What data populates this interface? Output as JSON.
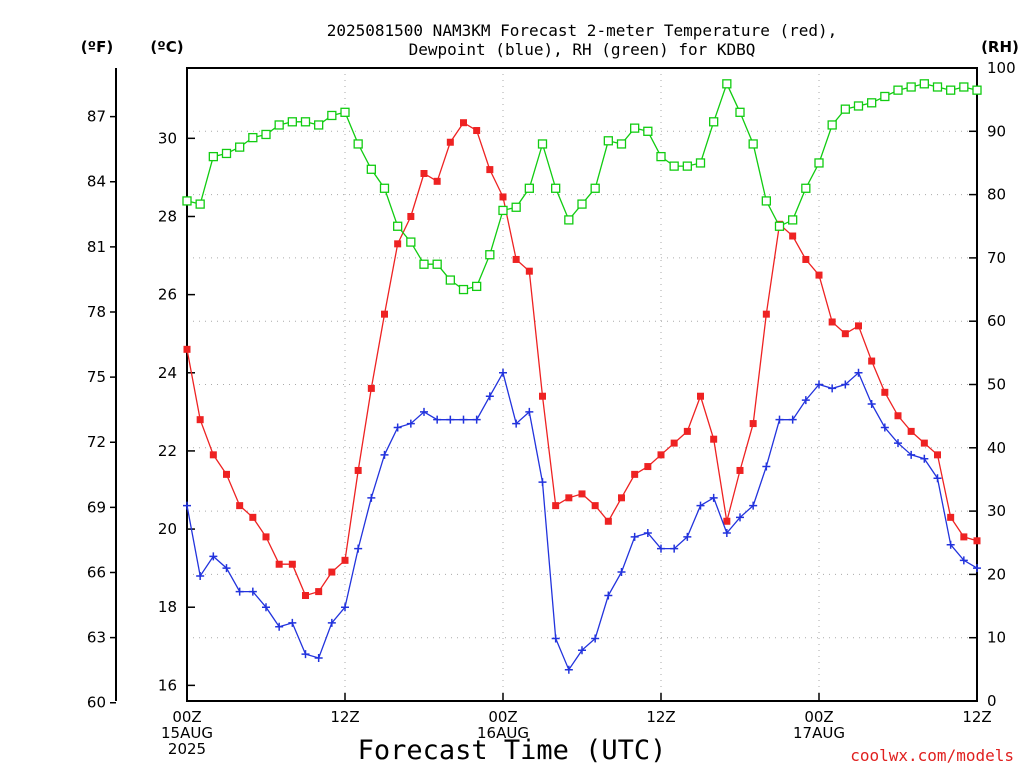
{
  "chart_data": {
    "type": "line",
    "title_line1": "2025081500 NAM3KM Forecast 2-meter Temperature (red),",
    "title_line2": "Dewpoint (blue), RH (green) for KDBQ",
    "xlabel": "Forecast Time (UTC)",
    "credit": "coolwx.com/models",
    "units": {
      "f": "(ºF)",
      "c": "(ºC)",
      "rh": "(RH)"
    },
    "xlim": [
      0,
      60
    ],
    "x_ticks": [
      {
        "x": 0,
        "lines": [
          "00Z",
          "15AUG",
          "2025"
        ]
      },
      {
        "x": 12,
        "lines": [
          "12Z"
        ]
      },
      {
        "x": 24,
        "lines": [
          "00Z",
          "16AUG"
        ]
      },
      {
        "x": 36,
        "lines": [
          "12Z"
        ]
      },
      {
        "x": 48,
        "lines": [
          "00Z",
          "17AUG"
        ]
      },
      {
        "x": 60,
        "lines": [
          "12Z"
        ]
      }
    ],
    "celsius_axis": {
      "range": [
        15.6,
        31.8
      ],
      "ticks": [
        16,
        18,
        20,
        22,
        24,
        26,
        28,
        30
      ]
    },
    "fahrenheit_axis": {
      "ticks": [
        60,
        63,
        66,
        69,
        72,
        75,
        78,
        81,
        84,
        87
      ]
    },
    "rh_axis": {
      "range": [
        0,
        100
      ],
      "ticks": [
        0,
        10,
        20,
        30,
        40,
        50,
        60,
        70,
        80,
        90,
        100
      ]
    },
    "colors": {
      "temperature": "#ee2222",
      "dewpoint": "#2233dd",
      "rh": "#11cc11",
      "grid": "#aaaaaa"
    },
    "series": [
      {
        "id": "temperature",
        "axis": "celsius",
        "marker": "filled-square",
        "values": [
          24.6,
          22.8,
          21.9,
          21.4,
          20.6,
          20.3,
          19.8,
          19.1,
          19.1,
          18.3,
          18.4,
          18.9,
          19.2,
          21.5,
          23.6,
          25.5,
          27.3,
          28.0,
          29.1,
          28.9,
          29.9,
          30.4,
          30.2,
          29.2,
          28.5,
          26.9,
          26.6,
          23.4,
          20.6,
          20.8,
          20.9,
          20.6,
          20.2,
          20.8,
          21.4,
          21.6,
          21.9,
          22.2,
          22.5,
          23.4,
          22.3,
          20.2,
          21.5,
          22.7,
          25.5,
          27.8,
          27.5,
          26.9,
          26.5,
          25.3,
          25.0,
          25.2,
          24.3,
          23.5,
          22.9,
          22.5,
          22.2,
          21.9,
          20.3,
          19.8,
          19.7
        ]
      },
      {
        "id": "dewpoint",
        "axis": "celsius",
        "marker": "plus",
        "values": [
          20.6,
          18.8,
          19.3,
          19.0,
          18.4,
          18.4,
          18.0,
          17.5,
          17.6,
          16.8,
          16.7,
          17.6,
          18.0,
          19.5,
          20.8,
          21.9,
          22.6,
          22.7,
          23.0,
          22.8,
          22.8,
          22.8,
          22.8,
          23.4,
          24.0,
          22.7,
          23.0,
          21.2,
          17.2,
          16.4,
          16.9,
          17.2,
          18.3,
          18.9,
          19.8,
          19.9,
          19.5,
          19.5,
          19.8,
          20.6,
          20.8,
          19.9,
          20.3,
          20.6,
          21.6,
          22.8,
          22.8,
          23.3,
          23.7,
          23.6,
          23.7,
          24.0,
          23.2,
          22.6,
          22.2,
          21.9,
          21.8,
          21.3,
          19.6,
          19.2,
          19.0
        ]
      },
      {
        "id": "rh",
        "axis": "rh",
        "marker": "open-square",
        "values": [
          79,
          78.5,
          86,
          86.5,
          87.5,
          89,
          89.5,
          91,
          91.5,
          91.5,
          91,
          92.5,
          93,
          88,
          84,
          81,
          75,
          72.5,
          69,
          69,
          66.5,
          65,
          65.5,
          70.5,
          77.5,
          78,
          81,
          88,
          81,
          76,
          78.5,
          81,
          88.5,
          88,
          90.5,
          90,
          86,
          84.5,
          84.5,
          85,
          91.5,
          97.5,
          93,
          88,
          79,
          75,
          76,
          81,
          85,
          91,
          93.5,
          94,
          94.5,
          95.5,
          96.5,
          97,
          97.5,
          97,
          96.5,
          97,
          96.5
        ]
      }
    ]
  }
}
